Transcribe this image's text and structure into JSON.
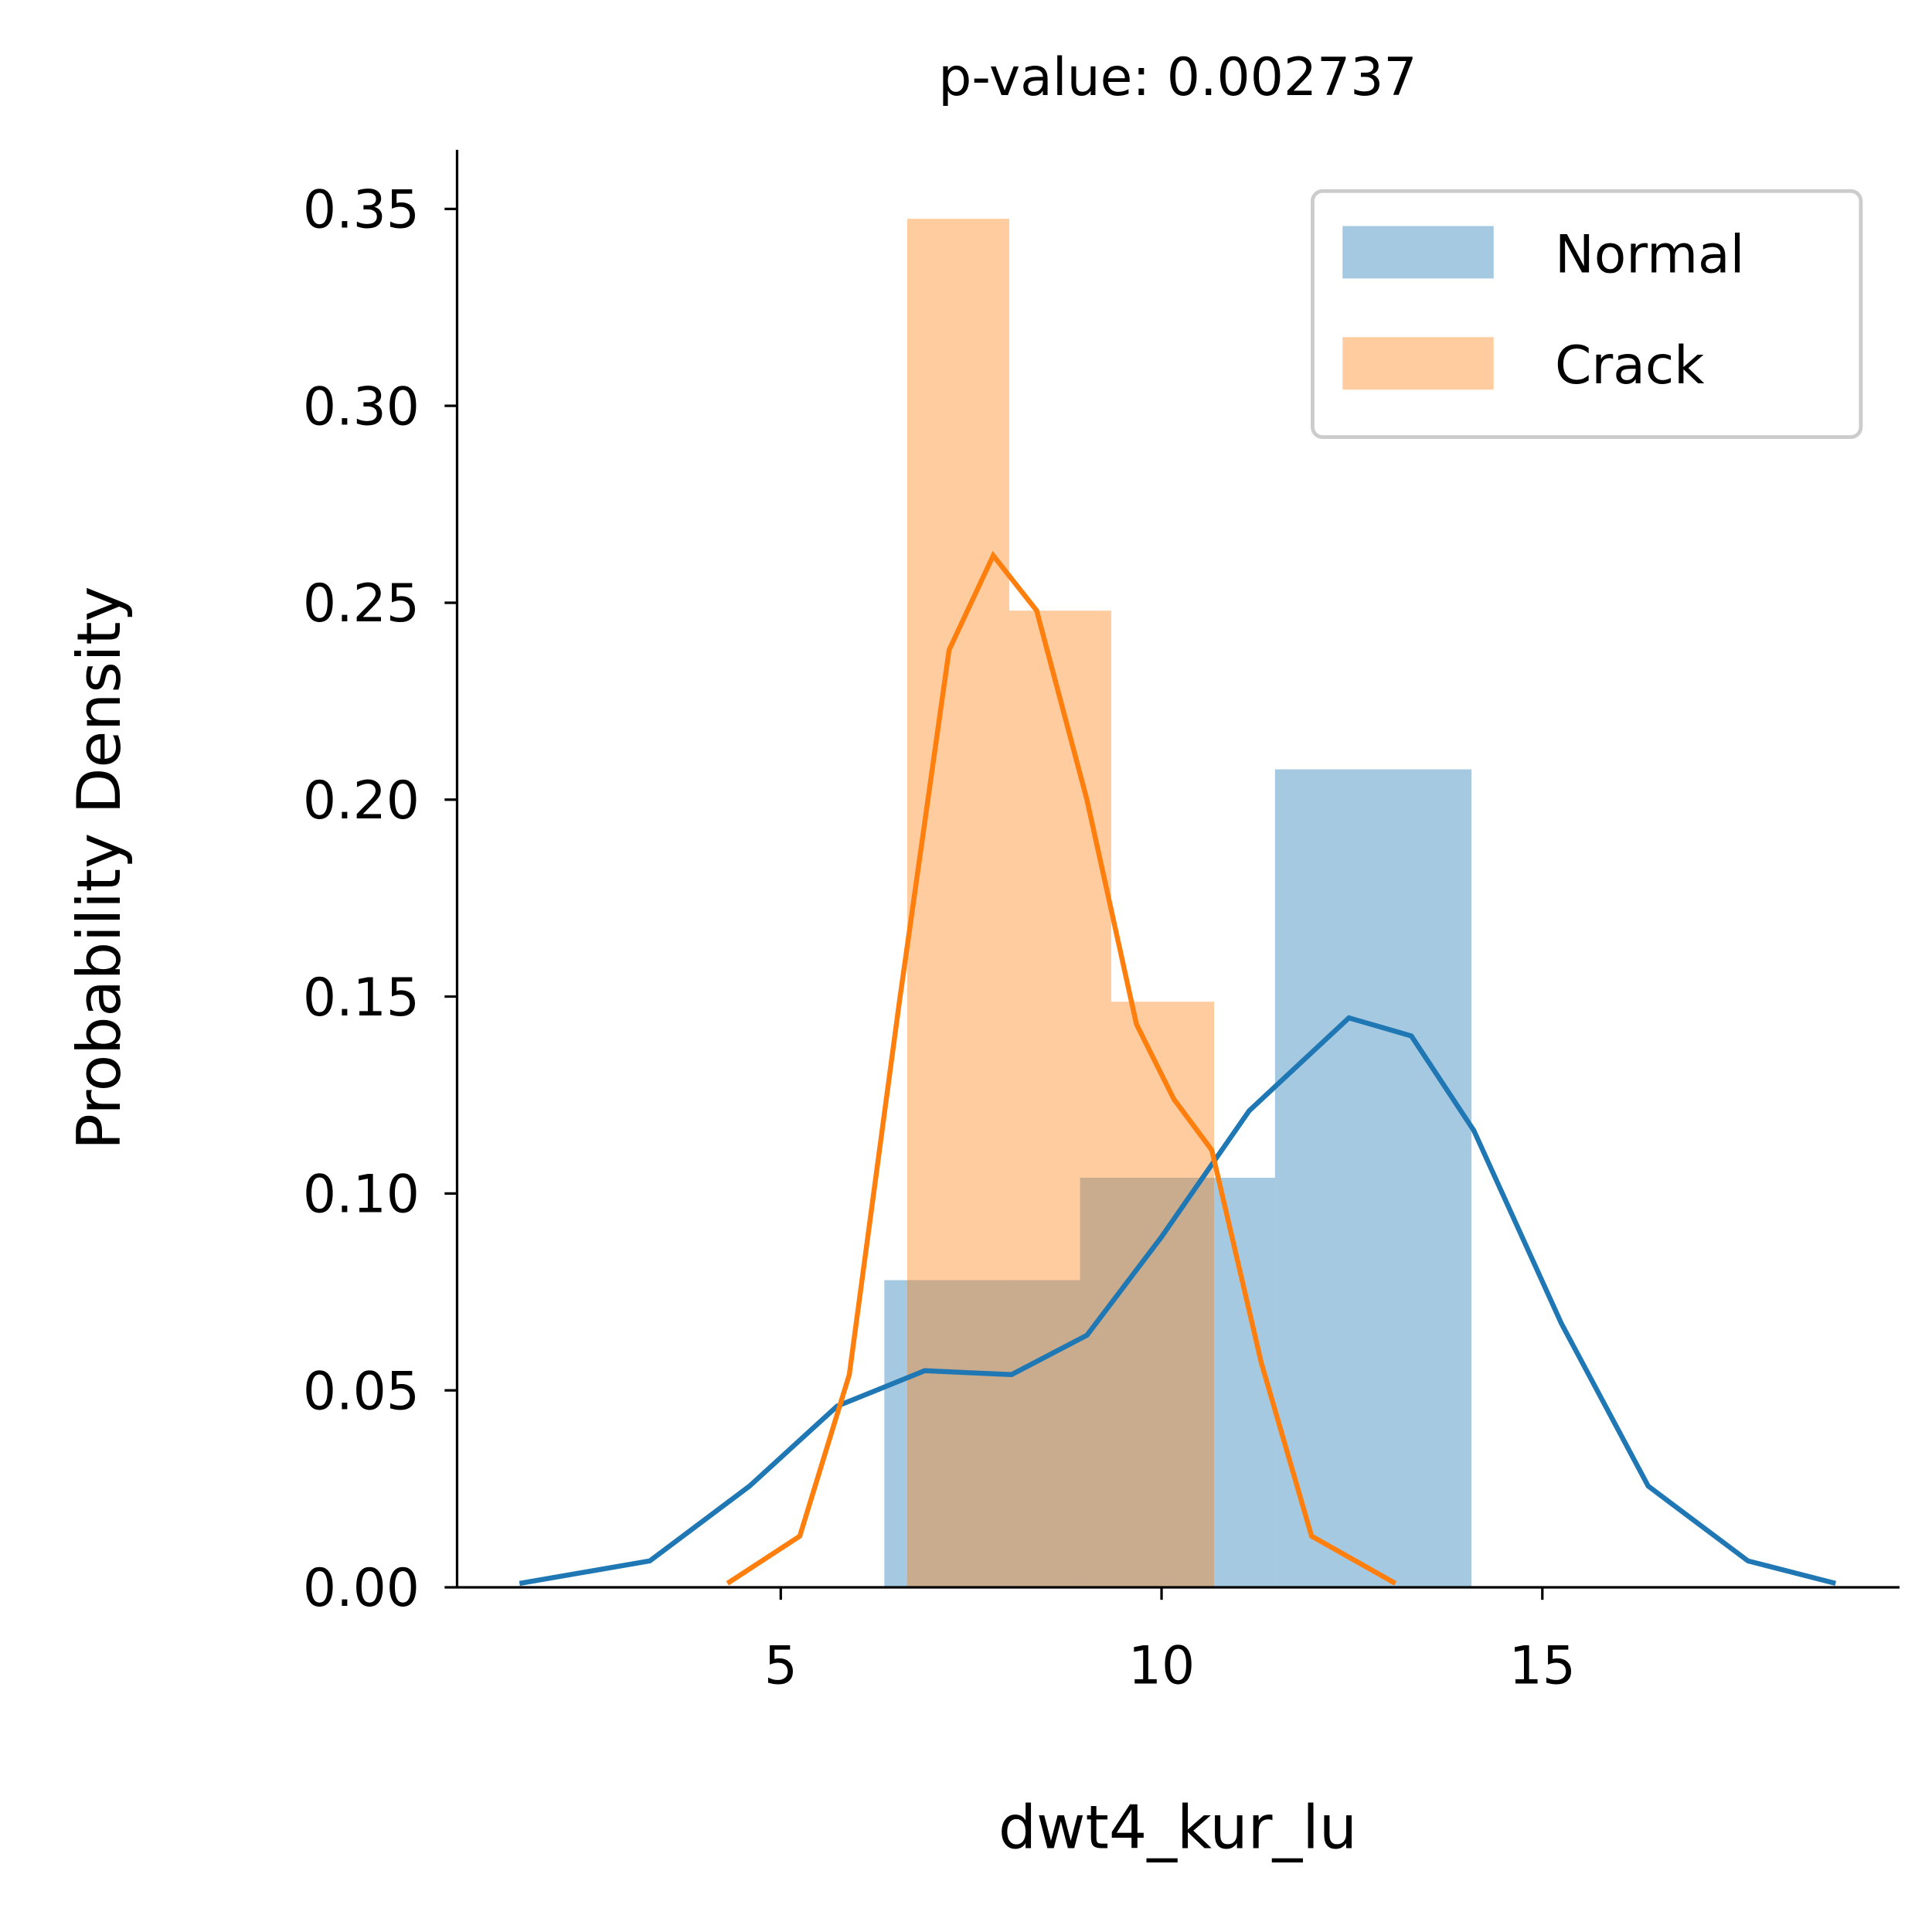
{
  "chart_data": {
    "type": "histogram",
    "title": "p-value: 0.002737",
    "x_label": "dwt4_kur_lu",
    "y_label": "Probability Density",
    "xlim": [
      0.75,
      19.69
    ],
    "ylim": [
      0,
      0.365
    ],
    "xticks": [
      5,
      10,
      15
    ],
    "yticks": [
      {
        "value": 0,
        "label": "0.00"
      },
      {
        "value": 0.05,
        "label": "0.05"
      },
      {
        "value": 0.1,
        "label": "0.10"
      },
      {
        "value": 0.15,
        "label": "0.15"
      },
      {
        "value": 0.2,
        "label": "0.20"
      },
      {
        "value": 0.25,
        "label": "0.25"
      },
      {
        "value": 0.3,
        "label": "0.30"
      },
      {
        "value": 0.35,
        "label": "0.35"
      }
    ],
    "legend": "upper right",
    "series": [
      {
        "name": "Normal",
        "color": "#1f77b4",
        "bins": [
          6.36,
          8.93,
          11.49,
          14.07
        ],
        "values": [
          0.078,
          0.104,
          0.2077
        ],
        "kde_x": [
          1.57,
          3.28,
          4.59,
          5.74,
          6.89,
          8.03,
          9.02,
          10.0,
          11.15,
          12.46,
          13.28,
          14.1,
          15.25,
          16.39,
          17.7,
          18.85
        ],
        "kde_y": [
          0.001,
          0.0067,
          0.0257,
          0.046,
          0.055,
          0.054,
          0.064,
          0.089,
          0.121,
          0.1446,
          0.14,
          0.116,
          0.067,
          0.0257,
          0.0067,
          0.001
        ]
      },
      {
        "name": "Crack",
        "color": "#ff7f0e",
        "bins": [
          6.66,
          8.0,
          9.34,
          10.69
        ],
        "values": [
          0.3475,
          0.248,
          0.1487
        ],
        "kde_x": [
          4.3,
          5.25,
          5.9,
          6.56,
          7.21,
          7.79,
          8.36,
          9.02,
          9.67,
          10.16,
          10.66,
          11.31,
          11.97,
          13.07
        ],
        "kde_y": [
          0.001,
          0.013,
          0.054,
          0.149,
          0.238,
          0.262,
          0.248,
          0.2,
          0.143,
          0.124,
          0.111,
          0.057,
          0.013,
          0.001
        ]
      }
    ]
  }
}
